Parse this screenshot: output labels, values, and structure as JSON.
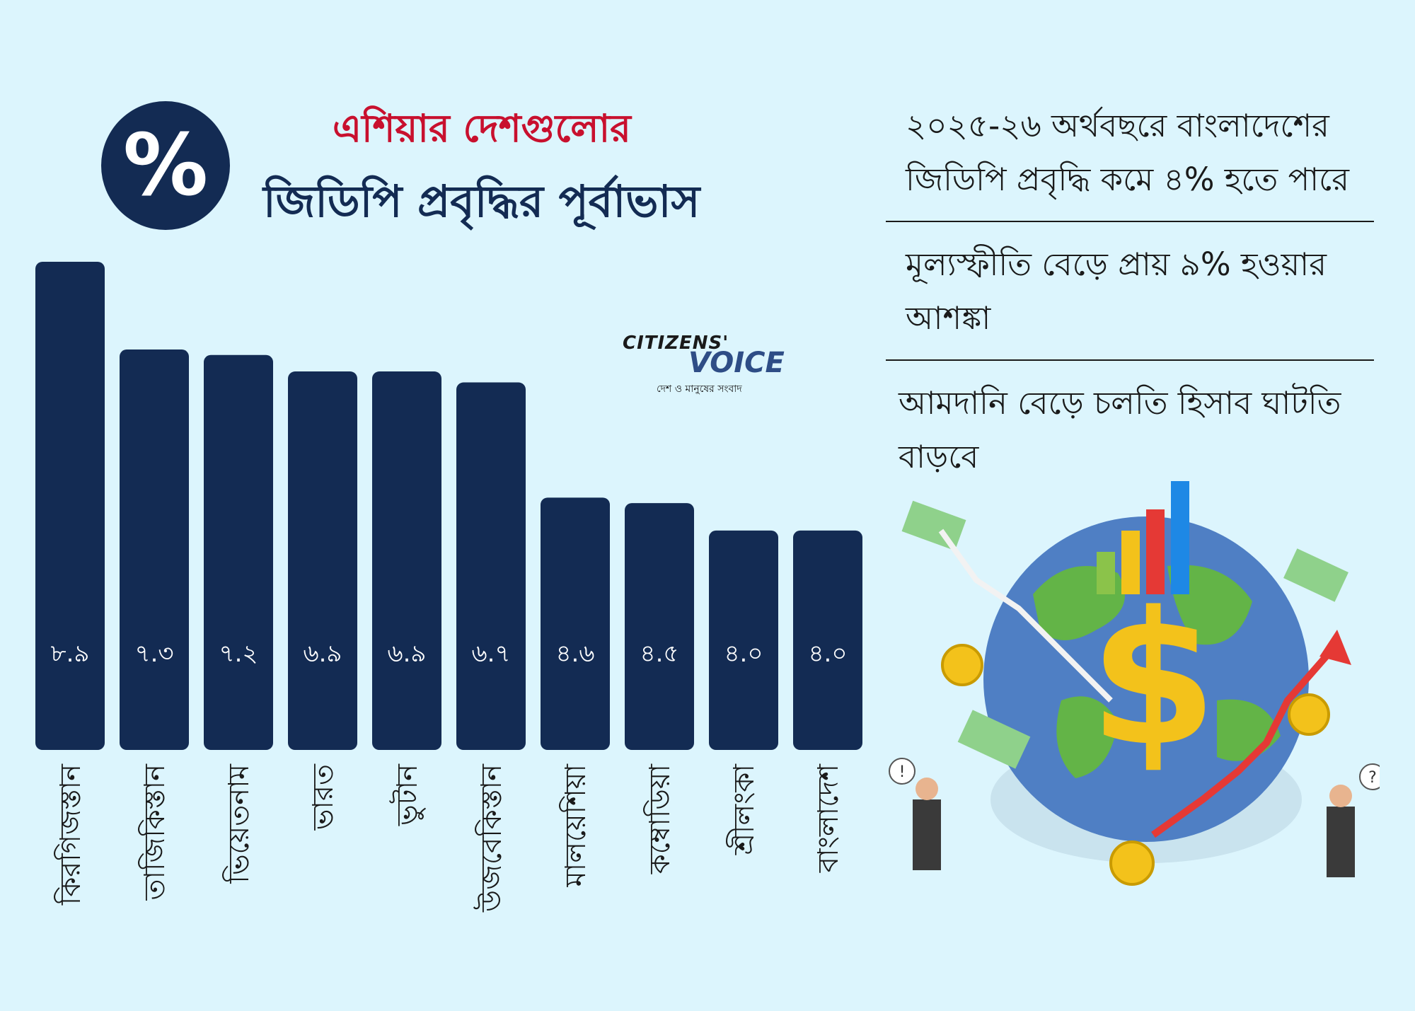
{
  "header": {
    "badge_symbol": "%",
    "title_line1": "এশিয়ার দেশগুলোর",
    "title_line2": "জিডিপি প্রবৃদ্ধির পূর্বাভাস"
  },
  "logo": {
    "line1": "CITIZENS'",
    "line2": "VOICE",
    "tagline": "দেশ ও মানুষের সংবাদ"
  },
  "points": [
    "২০২৫-২৬ অর্থবছরে বাংলাদেশের জিডিপি প্রবৃদ্ধি কমে ৪% হতে পারে",
    "মূল্যস্ফীতি বেড়ে প্রায় ৯% হওয়ার আশঙ্কা",
    "আমদানি বেড়ে চলতি হিসাব ঘাটতি বাড়বে"
  ],
  "colors": {
    "background": "#dcf5fd",
    "bar": "#132b53",
    "title_red": "#c8102e",
    "title_navy": "#132b53"
  },
  "chart_data": {
    "type": "bar",
    "categories": [
      "কিরগিজস্তান",
      "তাজিকিস্তান",
      "ভিয়েতনাম",
      "ভারত",
      "ভুটান",
      "উজবেকিস্তান",
      "মালয়েশিয়া",
      "কম্বোডিয়া",
      "শ্রীলংকা",
      "বাংলাদেশ"
    ],
    "values": [
      8.9,
      7.3,
      7.2,
      6.9,
      6.9,
      6.7,
      4.6,
      4.5,
      4.0,
      4.0
    ],
    "data_labels": [
      "৮.৯",
      "৭.৩",
      "৭.২",
      "৬.৯",
      "৬.৯",
      "৬.৭",
      "৪.৬",
      "৪.৫",
      "৪.০",
      "৪.০"
    ],
    "ylim": [
      0,
      8.9
    ],
    "grid": false,
    "legend": "none"
  }
}
